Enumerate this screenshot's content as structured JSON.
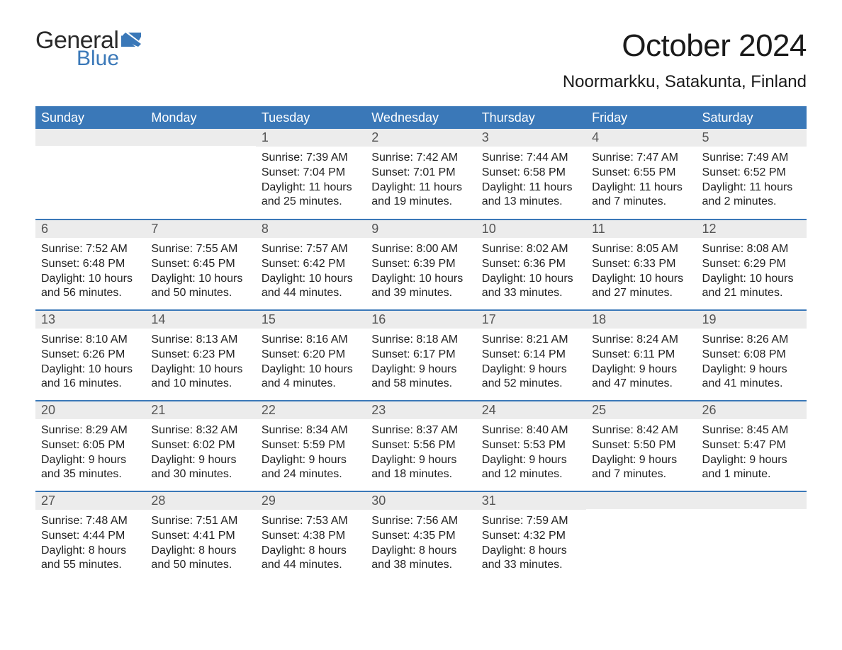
{
  "brand": {
    "general": "General",
    "blue": "Blue",
    "flag_color": "#3a78b8"
  },
  "title": "October 2024",
  "location": "Noormarkku, Satakunta, Finland",
  "colors": {
    "header_bg": "#3a78b8",
    "header_text": "#ffffff",
    "daynum_bg": "#ececec",
    "daynum_text": "#555555",
    "row_border": "#3a78b8",
    "body_text": "#222222",
    "page_bg": "#ffffff"
  },
  "fonts": {
    "title_size_pt": 44,
    "location_size_pt": 24,
    "weekday_size_pt": 18,
    "daynum_size_pt": 18,
    "cell_size_pt": 16
  },
  "calendar": {
    "weekday_labels": [
      "Sunday",
      "Monday",
      "Tuesday",
      "Wednesday",
      "Thursday",
      "Friday",
      "Saturday"
    ],
    "weeks": [
      [
        {
          "day": "",
          "sunrise": "",
          "sunset": "",
          "daylight": ""
        },
        {
          "day": "",
          "sunrise": "",
          "sunset": "",
          "daylight": ""
        },
        {
          "day": "1",
          "sunrise": "Sunrise: 7:39 AM",
          "sunset": "Sunset: 7:04 PM",
          "daylight": "Daylight: 11 hours and 25 minutes."
        },
        {
          "day": "2",
          "sunrise": "Sunrise: 7:42 AM",
          "sunset": "Sunset: 7:01 PM",
          "daylight": "Daylight: 11 hours and 19 minutes."
        },
        {
          "day": "3",
          "sunrise": "Sunrise: 7:44 AM",
          "sunset": "Sunset: 6:58 PM",
          "daylight": "Daylight: 11 hours and 13 minutes."
        },
        {
          "day": "4",
          "sunrise": "Sunrise: 7:47 AM",
          "sunset": "Sunset: 6:55 PM",
          "daylight": "Daylight: 11 hours and 7 minutes."
        },
        {
          "day": "5",
          "sunrise": "Sunrise: 7:49 AM",
          "sunset": "Sunset: 6:52 PM",
          "daylight": "Daylight: 11 hours and 2 minutes."
        }
      ],
      [
        {
          "day": "6",
          "sunrise": "Sunrise: 7:52 AM",
          "sunset": "Sunset: 6:48 PM",
          "daylight": "Daylight: 10 hours and 56 minutes."
        },
        {
          "day": "7",
          "sunrise": "Sunrise: 7:55 AM",
          "sunset": "Sunset: 6:45 PM",
          "daylight": "Daylight: 10 hours and 50 minutes."
        },
        {
          "day": "8",
          "sunrise": "Sunrise: 7:57 AM",
          "sunset": "Sunset: 6:42 PM",
          "daylight": "Daylight: 10 hours and 44 minutes."
        },
        {
          "day": "9",
          "sunrise": "Sunrise: 8:00 AM",
          "sunset": "Sunset: 6:39 PM",
          "daylight": "Daylight: 10 hours and 39 minutes."
        },
        {
          "day": "10",
          "sunrise": "Sunrise: 8:02 AM",
          "sunset": "Sunset: 6:36 PM",
          "daylight": "Daylight: 10 hours and 33 minutes."
        },
        {
          "day": "11",
          "sunrise": "Sunrise: 8:05 AM",
          "sunset": "Sunset: 6:33 PM",
          "daylight": "Daylight: 10 hours and 27 minutes."
        },
        {
          "day": "12",
          "sunrise": "Sunrise: 8:08 AM",
          "sunset": "Sunset: 6:29 PM",
          "daylight": "Daylight: 10 hours and 21 minutes."
        }
      ],
      [
        {
          "day": "13",
          "sunrise": "Sunrise: 8:10 AM",
          "sunset": "Sunset: 6:26 PM",
          "daylight": "Daylight: 10 hours and 16 minutes."
        },
        {
          "day": "14",
          "sunrise": "Sunrise: 8:13 AM",
          "sunset": "Sunset: 6:23 PM",
          "daylight": "Daylight: 10 hours and 10 minutes."
        },
        {
          "day": "15",
          "sunrise": "Sunrise: 8:16 AM",
          "sunset": "Sunset: 6:20 PM",
          "daylight": "Daylight: 10 hours and 4 minutes."
        },
        {
          "day": "16",
          "sunrise": "Sunrise: 8:18 AM",
          "sunset": "Sunset: 6:17 PM",
          "daylight": "Daylight: 9 hours and 58 minutes."
        },
        {
          "day": "17",
          "sunrise": "Sunrise: 8:21 AM",
          "sunset": "Sunset: 6:14 PM",
          "daylight": "Daylight: 9 hours and 52 minutes."
        },
        {
          "day": "18",
          "sunrise": "Sunrise: 8:24 AM",
          "sunset": "Sunset: 6:11 PM",
          "daylight": "Daylight: 9 hours and 47 minutes."
        },
        {
          "day": "19",
          "sunrise": "Sunrise: 8:26 AM",
          "sunset": "Sunset: 6:08 PM",
          "daylight": "Daylight: 9 hours and 41 minutes."
        }
      ],
      [
        {
          "day": "20",
          "sunrise": "Sunrise: 8:29 AM",
          "sunset": "Sunset: 6:05 PM",
          "daylight": "Daylight: 9 hours and 35 minutes."
        },
        {
          "day": "21",
          "sunrise": "Sunrise: 8:32 AM",
          "sunset": "Sunset: 6:02 PM",
          "daylight": "Daylight: 9 hours and 30 minutes."
        },
        {
          "day": "22",
          "sunrise": "Sunrise: 8:34 AM",
          "sunset": "Sunset: 5:59 PM",
          "daylight": "Daylight: 9 hours and 24 minutes."
        },
        {
          "day": "23",
          "sunrise": "Sunrise: 8:37 AM",
          "sunset": "Sunset: 5:56 PM",
          "daylight": "Daylight: 9 hours and 18 minutes."
        },
        {
          "day": "24",
          "sunrise": "Sunrise: 8:40 AM",
          "sunset": "Sunset: 5:53 PM",
          "daylight": "Daylight: 9 hours and 12 minutes."
        },
        {
          "day": "25",
          "sunrise": "Sunrise: 8:42 AM",
          "sunset": "Sunset: 5:50 PM",
          "daylight": "Daylight: 9 hours and 7 minutes."
        },
        {
          "day": "26",
          "sunrise": "Sunrise: 8:45 AM",
          "sunset": "Sunset: 5:47 PM",
          "daylight": "Daylight: 9 hours and 1 minute."
        }
      ],
      [
        {
          "day": "27",
          "sunrise": "Sunrise: 7:48 AM",
          "sunset": "Sunset: 4:44 PM",
          "daylight": "Daylight: 8 hours and 55 minutes."
        },
        {
          "day": "28",
          "sunrise": "Sunrise: 7:51 AM",
          "sunset": "Sunset: 4:41 PM",
          "daylight": "Daylight: 8 hours and 50 minutes."
        },
        {
          "day": "29",
          "sunrise": "Sunrise: 7:53 AM",
          "sunset": "Sunset: 4:38 PM",
          "daylight": "Daylight: 8 hours and 44 minutes."
        },
        {
          "day": "30",
          "sunrise": "Sunrise: 7:56 AM",
          "sunset": "Sunset: 4:35 PM",
          "daylight": "Daylight: 8 hours and 38 minutes."
        },
        {
          "day": "31",
          "sunrise": "Sunrise: 7:59 AM",
          "sunset": "Sunset: 4:32 PM",
          "daylight": "Daylight: 8 hours and 33 minutes."
        },
        {
          "day": "",
          "sunrise": "",
          "sunset": "",
          "daylight": ""
        },
        {
          "day": "",
          "sunrise": "",
          "sunset": "",
          "daylight": ""
        }
      ]
    ]
  }
}
